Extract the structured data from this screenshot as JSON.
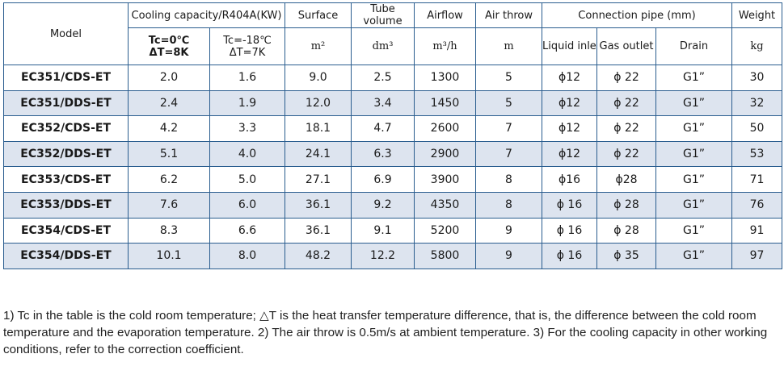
{
  "header": {
    "model": "Model",
    "cooling_capacity": "Cooling capacity/R404A(KW)",
    "tc0_line1": "Tc=0℃",
    "tc0_line2": "ΔT=8K",
    "tc18_line1": "Tc=-18℃",
    "tc18_line2": "ΔT=7K",
    "surface": "Surface",
    "tube_volume": "Tube volume",
    "airflow": "Airflow",
    "air_throw": "Air throw",
    "connection_pipe": "Connection pipe (mm)",
    "liquid_inlet": "Liquid inlet",
    "gas_outlet": "Gas outlet",
    "drain": "Drain",
    "weight": "Weight",
    "unit_surface": "m²",
    "unit_tube": "dm³",
    "unit_airflow": "m³/h",
    "unit_throw": "m",
    "unit_weight": "kg"
  },
  "rows": [
    {
      "model": "EC351/CDS-ET",
      "cap0": "2.0",
      "cap18": "1.6",
      "surface": "9.0",
      "tube": "2.5",
      "airflow": "1300",
      "throw": "5",
      "liquid": "ϕ12",
      "gas": "ϕ 22",
      "drain": "G1”",
      "weight": "30"
    },
    {
      "model": "EC351/DDS-ET",
      "cap0": "2.4",
      "cap18": "1.9",
      "surface": "12.0",
      "tube": "3.4",
      "airflow": "1450",
      "throw": "5",
      "liquid": "ϕ12",
      "gas": "ϕ 22",
      "drain": "G1”",
      "weight": "32"
    },
    {
      "model": "EC352/CDS-ET",
      "cap0": "4.2",
      "cap18": "3.3",
      "surface": "18.1",
      "tube": "4.7",
      "airflow": "2600",
      "throw": "7",
      "liquid": "ϕ12",
      "gas": "ϕ 22",
      "drain": "G1”",
      "weight": "50"
    },
    {
      "model": "EC352/DDS-ET",
      "cap0": "5.1",
      "cap18": "4.0",
      "surface": "24.1",
      "tube": "6.3",
      "airflow": "2900",
      "throw": "7",
      "liquid": "ϕ12",
      "gas": "ϕ 22",
      "drain": "G1”",
      "weight": "53"
    },
    {
      "model": "EC353/CDS-ET",
      "cap0": "6.2",
      "cap18": "5.0",
      "surface": "27.1",
      "tube": "6.9",
      "airflow": "3900",
      "throw": "8",
      "liquid": "ϕ16",
      "gas": "ϕ28",
      "drain": "G1”",
      "weight": "71"
    },
    {
      "model": "EC353/DDS-ET",
      "cap0": "7.6",
      "cap18": "6.0",
      "surface": "36.1",
      "tube": "9.2",
      "airflow": "4350",
      "throw": "8",
      "liquid": "ϕ 16",
      "gas": "ϕ 28",
      "drain": "G1”",
      "weight": "76"
    },
    {
      "model": "EC354/CDS-ET",
      "cap0": "8.3",
      "cap18": "6.6",
      "surface": "36.1",
      "tube": "9.1",
      "airflow": "5200",
      "throw": "9",
      "liquid": "ϕ 16",
      "gas": "ϕ 28",
      "drain": "G1”",
      "weight": "91"
    },
    {
      "model": "EC354/DDS-ET",
      "cap0": "10.1",
      "cap18": "8.0",
      "surface": "48.2",
      "tube": "12.2",
      "airflow": "5800",
      "throw": "9",
      "liquid": "ϕ 16",
      "gas": "ϕ 35",
      "drain": "G1”",
      "weight": "97"
    }
  ],
  "notes": "1) Tc in the table is the cold room temperature; △T is the heat transfer temperature difference, that is, the difference between the cold room temperature and the evaporation temperature. 2) The air throw is 0.5m/s at ambient temperature. 3) For the cooling capacity in other working conditions, refer to the correction coefficient.",
  "colors": {
    "border": "#2a5d8f",
    "shade": "#dde4ef"
  }
}
